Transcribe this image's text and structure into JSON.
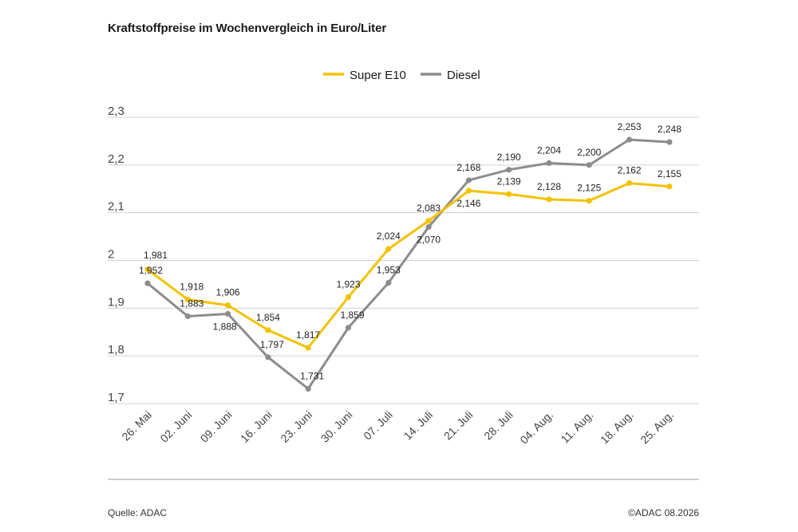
{
  "chart_data": {
    "type": "line",
    "title": "Kraftstoffpreise im Wochenvergleich in Euro/Liter",
    "categories": [
      "26. Mai",
      "02. Juni",
      "09. Juni",
      "16. Juni",
      "23. Juni",
      "30. Juni",
      "07. Juli",
      "14. Juli",
      "21. Juli",
      "28. Juli",
      "04. Aug.",
      "11. Aug.",
      "18. Aug.",
      "25. Aug."
    ],
    "series": [
      {
        "name": "Super E10",
        "color": "#f2c200",
        "values": [
          1.981,
          1.918,
          1.906,
          1.854,
          1.817,
          1.923,
          2.024,
          2.083,
          2.146,
          2.139,
          2.128,
          2.125,
          2.162,
          2.155
        ],
        "labels": [
          "1,981",
          "1,918",
          "1,906",
          "1,854",
          "1,817",
          "1,923",
          "2,024",
          "2,083",
          "2,146",
          "2,139",
          "2,128",
          "2,125",
          "2,162",
          "2,155"
        ]
      },
      {
        "name": "Diesel",
        "color": "#8c8c8c",
        "values": [
          1.952,
          1.883,
          1.888,
          1.797,
          1.731,
          1.859,
          1.953,
          2.07,
          2.168,
          2.19,
          2.204,
          2.2,
          2.253,
          2.248
        ],
        "labels": [
          "1,952",
          "1,883",
          "1,888",
          "1,797",
          "1,731",
          "1,859",
          "1,953",
          "2,070",
          "2,168",
          "2,190",
          "2,204",
          "2,200",
          "2,253",
          "2,248"
        ]
      }
    ],
    "ylim": [
      1.7,
      2.3
    ],
    "yticks": [
      {
        "value": 2.3,
        "label": "2,3"
      },
      {
        "value": 2.2,
        "label": "2,2"
      },
      {
        "value": 2.1,
        "label": "2,1"
      },
      {
        "value": 2.0,
        "label": "2"
      },
      {
        "value": 1.9,
        "label": "1,9"
      },
      {
        "value": 1.8,
        "label": "1,8"
      },
      {
        "value": 1.7,
        "label": "1,7"
      }
    ],
    "xlabel": "",
    "ylabel": "",
    "grid": true,
    "legend": "top-center"
  },
  "footer": {
    "source": "Quelle: ADAC",
    "copyright": "©ADAC 08.2026"
  }
}
